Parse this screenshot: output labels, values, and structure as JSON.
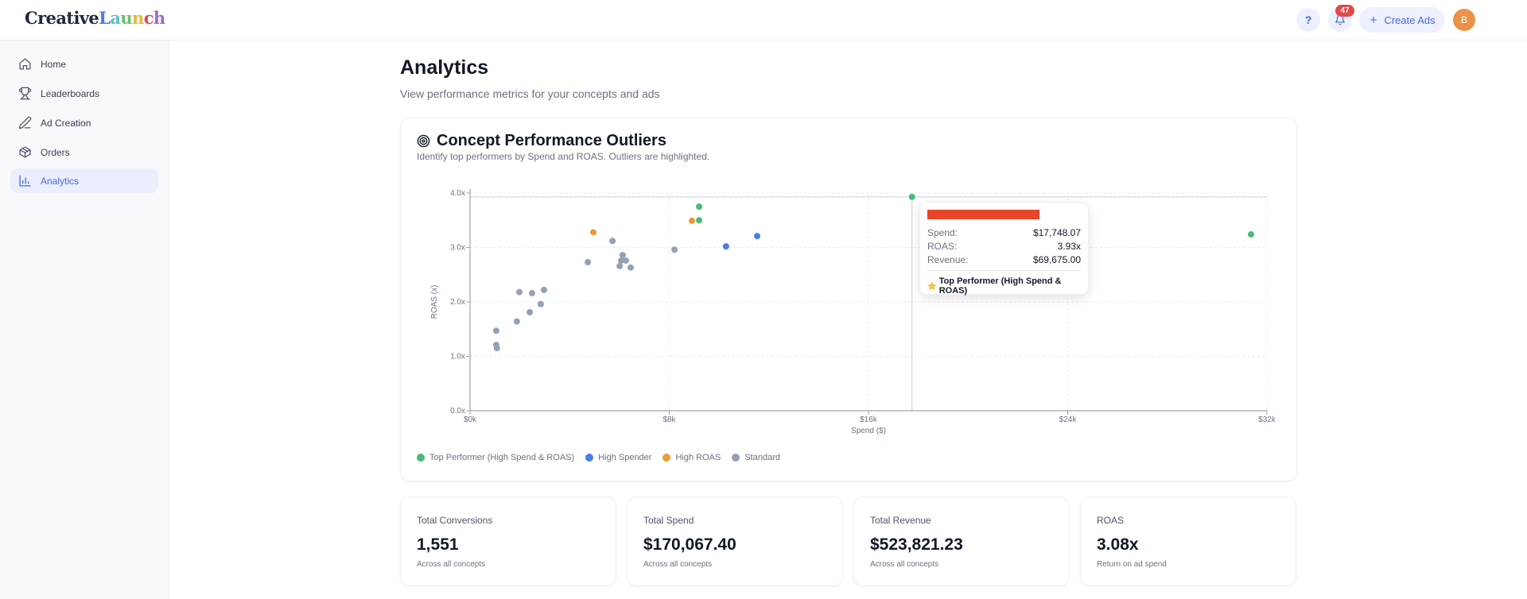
{
  "app": {
    "logo_dark": "Creative",
    "logo_letters": [
      {
        "ch": "L",
        "color": "#4a7ee0"
      },
      {
        "ch": "a",
        "color": "#5bc0c4"
      },
      {
        "ch": "u",
        "color": "#6cc16b"
      },
      {
        "ch": "n",
        "color": "#e6b93a"
      },
      {
        "ch": "c",
        "color": "#e0445a"
      },
      {
        "ch": "h",
        "color": "#9b6ac6"
      }
    ]
  },
  "topbar": {
    "help_label": "?",
    "notification_count": "47",
    "create_ads_label": "Create Ads",
    "avatar_initial": "B"
  },
  "sidebar": {
    "items": [
      {
        "label": "Home",
        "icon": "home-icon"
      },
      {
        "label": "Leaderboards",
        "icon": "trophy-icon"
      },
      {
        "label": "Ad Creation",
        "icon": "pencil-icon"
      },
      {
        "label": "Orders",
        "icon": "package-icon"
      },
      {
        "label": "Analytics",
        "icon": "bar-chart-icon",
        "active": true
      }
    ]
  },
  "page": {
    "title": "Analytics",
    "subtitle": "View performance metrics for your concepts and ads"
  },
  "chart_card": {
    "title": "Concept Performance Outliers",
    "subtitle": "Identify top performers by Spend and ROAS. Outliers are highlighted.",
    "icon": "target-icon"
  },
  "tooltip": {
    "spend_label": "Spend:",
    "spend_value": "$17,748.07",
    "roas_label": "ROAS:",
    "roas_value": "3.93x",
    "revenue_label": "Revenue:",
    "revenue_value": "$69,675.00",
    "category": "Top Performer (High Spend & ROAS)",
    "bar_color": "#e84428"
  },
  "colors": {
    "top": "#4cb87a",
    "high_spender": "#4a7ee8",
    "high_roas": "#eb9a38",
    "standard": "#94a0b4"
  },
  "chart_data": {
    "type": "scatter",
    "title": "Concept Performance Outliers",
    "xlabel": "Spend ($)",
    "ylabel": "ROAS (x)",
    "xlim": [
      0,
      32000
    ],
    "ylim": [
      0,
      4.0
    ],
    "x_ticks": [
      "$0k",
      "$8k",
      "$16k",
      "$24k",
      "$32k"
    ],
    "y_ticks": [
      "0.0x",
      "1.0x",
      "2.0x",
      "3.0x",
      "4.0x"
    ],
    "grid": true,
    "legend_position": "bottom",
    "reference_line_y": 3.93,
    "reference_line_x": 17748,
    "series": [
      {
        "name": "Top Performer (High Spend & ROAS)",
        "color": "#4cb87a",
        "points": [
          [
            9200,
            3.75
          ],
          [
            9200,
            3.5
          ],
          [
            17748,
            3.93
          ],
          [
            31360,
            3.24
          ]
        ]
      },
      {
        "name": "High Spender",
        "color": "#4a7ee8",
        "points": [
          [
            10280,
            3.02
          ],
          [
            11530,
            3.21
          ]
        ]
      },
      {
        "name": "High ROAS",
        "color": "#eb9a38",
        "points": [
          [
            4950,
            3.28
          ],
          [
            8910,
            3.49
          ]
        ]
      },
      {
        "name": "Standard",
        "color": "#94a0b4",
        "points": [
          [
            1050,
            1.47
          ],
          [
            1050,
            1.21
          ],
          [
            1080,
            1.15
          ],
          [
            1880,
            1.64
          ],
          [
            2400,
            1.81
          ],
          [
            1980,
            2.18
          ],
          [
            2490,
            2.16
          ],
          [
            2840,
            1.96
          ],
          [
            2970,
            2.22
          ],
          [
            4730,
            2.73
          ],
          [
            5720,
            3.12
          ],
          [
            6130,
            2.86
          ],
          [
            6070,
            2.76
          ],
          [
            6010,
            2.66
          ],
          [
            6260,
            2.76
          ],
          [
            6450,
            2.63
          ],
          [
            8210,
            2.96
          ]
        ]
      }
    ]
  },
  "stats": [
    {
      "label": "Total Conversions",
      "value": "1,551",
      "sub": "Across all concepts"
    },
    {
      "label": "Total Spend",
      "value": "$170,067.40",
      "sub": "Across all concepts"
    },
    {
      "label": "Total Revenue",
      "value": "$523,821.23",
      "sub": "Across all concepts"
    },
    {
      "label": "ROAS",
      "value": "3.08x",
      "sub": "Return on ad spend"
    }
  ]
}
